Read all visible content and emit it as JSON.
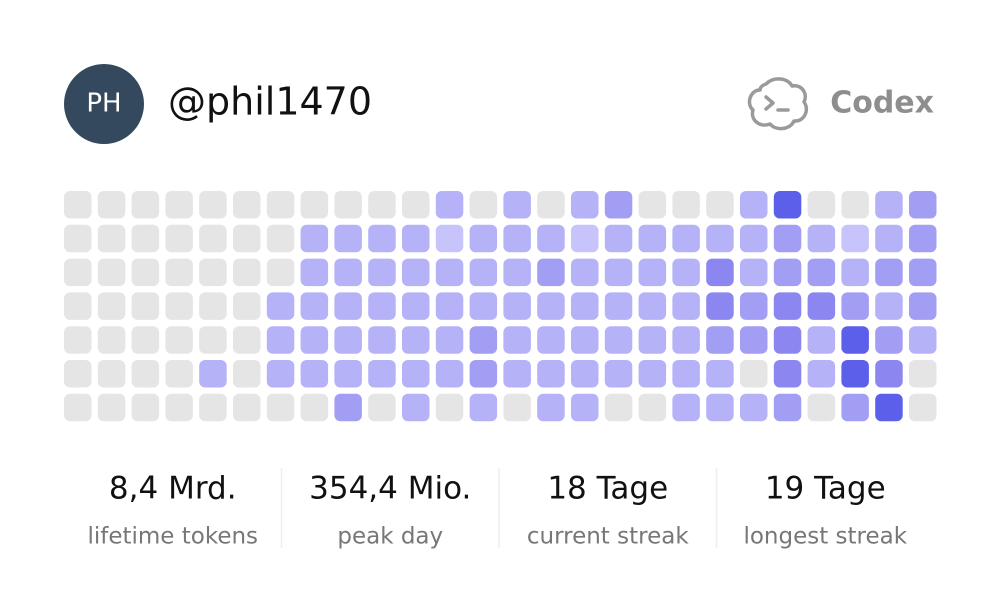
{
  "header": {
    "avatar_initials": "PH",
    "username": "@phil1470",
    "brand": "Codex"
  },
  "heatmap": {
    "palette": [
      "#e5e5e5",
      "#c6c4fa",
      "#b5b2f8",
      "#a29ef4",
      "#8c87f0",
      "#5c5fe9"
    ],
    "rows": [
      [
        0,
        0,
        0,
        0,
        0,
        0,
        0,
        0,
        0,
        0,
        0,
        2,
        0,
        2,
        0,
        2,
        3,
        0,
        0,
        0,
        2,
        5,
        0,
        0,
        2,
        3
      ],
      [
        0,
        0,
        0,
        0,
        0,
        0,
        0,
        2,
        2,
        2,
        2,
        1,
        2,
        2,
        2,
        1,
        2,
        2,
        2,
        2,
        2,
        3,
        2,
        1,
        2,
        3
      ],
      [
        0,
        0,
        0,
        0,
        0,
        0,
        0,
        2,
        2,
        2,
        2,
        2,
        2,
        2,
        3,
        2,
        2,
        2,
        2,
        4,
        2,
        3,
        3,
        2,
        3,
        3
      ],
      [
        0,
        0,
        0,
        0,
        0,
        0,
        2,
        2,
        2,
        2,
        2,
        2,
        2,
        2,
        2,
        2,
        2,
        2,
        2,
        4,
        3,
        4,
        4,
        3,
        2,
        3
      ],
      [
        0,
        0,
        0,
        0,
        0,
        0,
        2,
        2,
        2,
        2,
        2,
        2,
        3,
        2,
        2,
        2,
        2,
        2,
        2,
        3,
        3,
        4,
        2,
        5,
        3,
        2
      ],
      [
        0,
        0,
        0,
        0,
        2,
        0,
        2,
        2,
        2,
        2,
        2,
        2,
        3,
        2,
        2,
        2,
        2,
        2,
        2,
        2,
        0,
        4,
        2,
        5,
        4,
        0
      ],
      [
        0,
        0,
        0,
        0,
        0,
        0,
        0,
        0,
        3,
        0,
        2,
        0,
        2,
        0,
        2,
        2,
        0,
        0,
        2,
        2,
        2,
        3,
        0,
        3,
        5,
        0
      ]
    ]
  },
  "stats": [
    {
      "value": "8,4 Mrd.",
      "label": "lifetime tokens"
    },
    {
      "value": "354,4 Mio.",
      "label": "peak day"
    },
    {
      "value": "18 Tage",
      "label": "current streak"
    },
    {
      "value": "19 Tage",
      "label": "longest streak"
    }
  ]
}
